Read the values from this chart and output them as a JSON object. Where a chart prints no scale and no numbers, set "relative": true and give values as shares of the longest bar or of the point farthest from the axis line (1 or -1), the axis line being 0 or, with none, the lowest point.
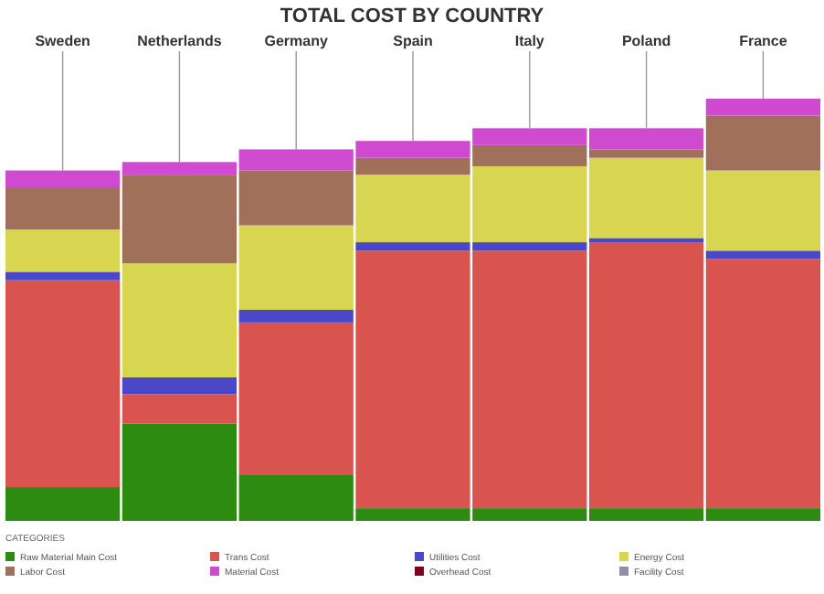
{
  "chart_data": {
    "type": "bar",
    "title": "TOTAL COST BY COUNTRY",
    "stacked": true,
    "relative": true,
    "legend": "bottom",
    "legend_title": "CATEGORIES",
    "categories": [
      "Sweden",
      "Netherlands",
      "Germany",
      "Spain",
      "Italy",
      "Poland",
      "France"
    ],
    "series": [
      {
        "name": "Raw Material Main Cost",
        "color": "#2e8b12",
        "values": [
          0.08,
          0.23,
          0.11,
          0.03,
          0.03,
          0.03,
          0.03
        ]
      },
      {
        "name": "Trans Cost",
        "color": "#d9534f",
        "values": [
          0.49,
          0.07,
          0.36,
          0.61,
          0.61,
          0.63,
          0.59
        ]
      },
      {
        "name": "Utilities Cost",
        "color": "#4a48c8",
        "values": [
          0.02,
          0.04,
          0.03,
          0.02,
          0.02,
          0.01,
          0.02
        ]
      },
      {
        "name": "Energy Cost",
        "color": "#d8d650",
        "values": [
          0.1,
          0.27,
          0.2,
          0.16,
          0.18,
          0.19,
          0.19
        ]
      },
      {
        "name": "Labor Cost",
        "color": "#a0705a",
        "values": [
          0.1,
          0.21,
          0.13,
          0.04,
          0.05,
          0.02,
          0.13
        ]
      },
      {
        "name": "Material Cost",
        "color": "#d04ad0",
        "values": [
          0.04,
          0.03,
          0.05,
          0.04,
          0.04,
          0.05,
          0.04
        ]
      },
      {
        "name": "Overhead Cost",
        "color": "#800020",
        "values": [
          0,
          0,
          0,
          0,
          0,
          0,
          0
        ]
      },
      {
        "name": "Facility Cost",
        "color": "#9090a0",
        "values": [
          0,
          0,
          0,
          0,
          0,
          0,
          0
        ]
      }
    ]
  }
}
